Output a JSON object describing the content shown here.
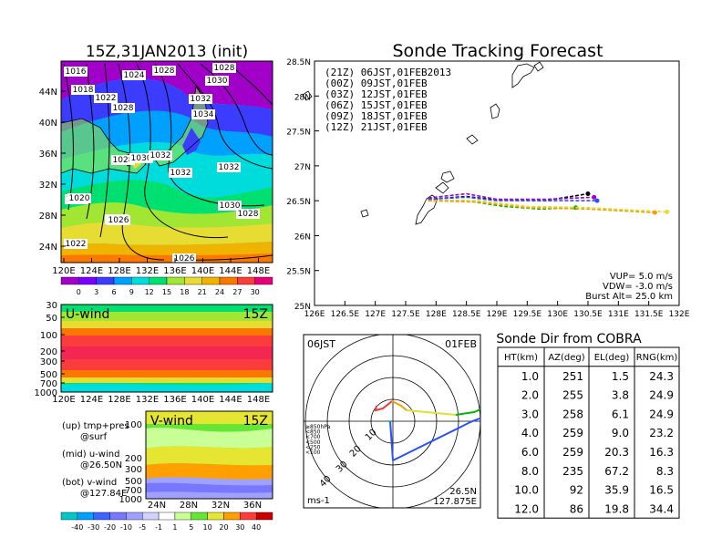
{
  "main_title": "Sonde Tracking Forecast",
  "surface_panel": {
    "title": "15Z,31JAN2013 (init)",
    "lon_ticks": [
      "120E",
      "124E",
      "128E",
      "132E",
      "136E",
      "140E",
      "144E",
      "148E"
    ],
    "lat_ticks": [
      "44N",
      "40N",
      "36N",
      "32N",
      "28N",
      "24N"
    ],
    "isobar_labels": [
      "1016",
      "1024",
      "1028",
      "1028",
      "1030",
      "1018",
      "1022",
      "1020",
      "1026",
      "1028",
      "1032",
      "1034",
      "1028",
      "1030",
      "1032",
      "1032",
      "1020",
      "1026",
      "1030",
      "1028",
      "1022",
      "1026",
      "1032"
    ],
    "colorbar_ticks": [
      "0",
      "3",
      "6",
      "9",
      "12",
      "15",
      "18",
      "21",
      "24",
      "27",
      "30"
    ],
    "colors": [
      "#a000c8",
      "#7a00ff",
      "#3c3cff",
      "#00a0ff",
      "#00dcdc",
      "#00e070",
      "#a0e632",
      "#e6dc32",
      "#f0b400",
      "#fa7800",
      "#fa3c3c",
      "#e6007a"
    ]
  },
  "u_panel": {
    "label": "U-wind",
    "time": "15Z",
    "p_ticks": [
      "30",
      "50",
      "100",
      "200",
      "300",
      "500",
      "700",
      "1000"
    ],
    "lon_ticks": [
      "120E",
      "124E",
      "128E",
      "132E",
      "136E",
      "140E",
      "144E",
      "148E"
    ]
  },
  "v_panel": {
    "label": "V-wind",
    "time": "15Z",
    "p_ticks": [
      "100",
      "200",
      "300",
      "500",
      "700",
      "1000"
    ],
    "lat_ticks": [
      "24N",
      "28N",
      "32N",
      "36N"
    ],
    "colorbar_ticks": [
      "-40",
      "-30",
      "-20",
      "-10",
      "-5",
      "-1",
      "1",
      "5",
      "10",
      "20",
      "30",
      "40"
    ],
    "colors": [
      "#00c8c8",
      "#00a0ff",
      "#3c64ff",
      "#7878ff",
      "#a0a0ff",
      "#d2d2ff",
      "#ffffff",
      "#c8ff96",
      "#64e632",
      "#e6e632",
      "#ffa000",
      "#ff3c3c",
      "#c80000"
    ]
  },
  "legend_notes": [
    {
      "l1": "(up) tmp+pres",
      "l2": "@surf"
    },
    {
      "l1": "(mid) u-wind",
      "l2": "@26.50N"
    },
    {
      "l1": "(bot) v-wind",
      "l2": "@127.84E"
    }
  ],
  "tracking": {
    "legend": [
      {
        "text": "(21Z) 06JST,01FEB2013",
        "color": "#000000"
      },
      {
        "text": "(00Z) 09JST,01FEB",
        "color": "#a000c8"
      },
      {
        "text": "(03Z) 12JST,01FEB",
        "color": "#2850ff"
      },
      {
        "text": "(06Z) 15JST,01FEB",
        "color": "#00b400"
      },
      {
        "text": "(09Z) 18JST,01FEB",
        "color": "#e6dc32"
      },
      {
        "text": "(12Z) 21JST,01FEB",
        "color": "#f0a000"
      }
    ],
    "x_ticks": [
      "126E",
      "126.5E",
      "127E",
      "127.5E",
      "128E",
      "128.5E",
      "129E",
      "129.5E",
      "130E",
      "130.5E",
      "131E",
      "131.5E",
      "132E"
    ],
    "y_ticks": [
      "28.5N",
      "28N",
      "27.5N",
      "27N",
      "26.5N",
      "26N",
      "25.5N",
      "25N"
    ],
    "params": [
      "VUP= 5.0 m/s",
      "VDW= -3.0 m/s",
      "Burst Alt= 25.0 km"
    ]
  },
  "chart_data": [
    {
      "type": "line",
      "title": "Sonde Tracking Forecast",
      "xlim": [
        126,
        132
      ],
      "ylim": [
        25,
        28.5
      ],
      "series": [
        {
          "name": "(21Z) 06JST,01FEB2013",
          "color": "#000000",
          "x": [
            127.87,
            128.5,
            129.0,
            129.8,
            130.5
          ],
          "y": [
            26.52,
            26.56,
            26.51,
            26.5,
            26.6
          ]
        },
        {
          "name": "(00Z) 09JST,01FEB",
          "color": "#a000c8",
          "x": [
            127.87,
            128.5,
            129.0,
            129.8,
            130.6
          ],
          "y": [
            26.54,
            26.6,
            26.52,
            26.52,
            26.55
          ]
        },
        {
          "name": "(03Z) 12JST,01FEB",
          "color": "#2850ff",
          "x": [
            127.87,
            128.5,
            129.0,
            129.8,
            130.65
          ],
          "y": [
            26.52,
            26.55,
            26.5,
            26.5,
            26.5
          ]
        },
        {
          "name": "(06Z) 15JST,01FEB",
          "color": "#00b400",
          "x": [
            127.87,
            128.5,
            129.1,
            129.7,
            130.3
          ],
          "y": [
            26.5,
            26.5,
            26.42,
            26.38,
            26.4
          ]
        },
        {
          "name": "(09Z) 18JST,01FEB",
          "color": "#e6dc32",
          "x": [
            127.87,
            128.7,
            129.5,
            130.5,
            131.8
          ],
          "y": [
            26.5,
            26.5,
            26.42,
            26.4,
            26.34
          ]
        },
        {
          "name": "(12Z) 21JST,01FEB",
          "color": "#f0a000",
          "x": [
            127.87,
            128.7,
            129.5,
            130.5,
            131.6
          ],
          "y": [
            26.5,
            26.48,
            26.4,
            26.38,
            26.33
          ]
        }
      ]
    },
    {
      "type": "table",
      "title": "Sonde Dir from COBRA",
      "columns": [
        "HT(km)",
        "AZ(deg)",
        "EL(deg)",
        "RNG(km)"
      ],
      "rows": [
        [
          "1.0",
          "251",
          "1.5",
          "24.3"
        ],
        [
          "2.0",
          "255",
          "3.8",
          "24.9"
        ],
        [
          "3.0",
          "258",
          "6.1",
          "24.9"
        ],
        [
          "4.0",
          "259",
          "9.0",
          "23.2"
        ],
        [
          "6.0",
          "259",
          "20.3",
          "16.3"
        ],
        [
          "8.0",
          "235",
          "67.2",
          "8.3"
        ],
        [
          "10.0",
          "92",
          "35.9",
          "16.5"
        ],
        [
          "12.0",
          "86",
          "19.8",
          "34.4"
        ]
      ]
    }
  ],
  "hodograph": {
    "time_left": "06JST",
    "time_right": "01FEB",
    "levels": [
      {
        "text": "≥850hPa",
        "color": "#e63c3c"
      },
      {
        "text": "<850",
        "color": "#f0a000"
      },
      {
        "text": "<700",
        "color": "#e6dc32"
      },
      {
        "text": "<500",
        "color": "#00b400"
      },
      {
        "text": "<250",
        "color": "#00c8c8"
      },
      {
        "text": "<100",
        "color": "#2850ff"
      }
    ],
    "ring_labels": [
      "10",
      "20",
      "30",
      "40"
    ],
    "unit": "ms-1",
    "lat": "26.5N",
    "lon": "127.875E"
  }
}
